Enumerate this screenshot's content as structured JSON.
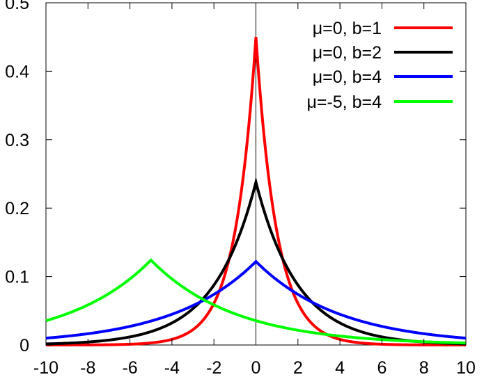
{
  "chart_data": {
    "type": "line",
    "title": "",
    "xlabel": "",
    "ylabel": "",
    "xlim": [
      -10,
      10
    ],
    "ylim": [
      0,
      0.5
    ],
    "xticks": [
      -10,
      -8,
      -6,
      -4,
      -2,
      0,
      2,
      4,
      6,
      8,
      10
    ],
    "xtick_labels": [
      "-10",
      "-8",
      "-6",
      "-4",
      "-2",
      "0",
      "2",
      "4",
      "6",
      "8",
      "10"
    ],
    "yticks": [
      0,
      0.1,
      0.2,
      0.3,
      0.4,
      0.5
    ],
    "ytick_labels": [
      "0",
      "0.1",
      "0.2",
      "0.3",
      "0.4",
      "0.5"
    ],
    "grid": false,
    "legend_position": "top-right",
    "series": [
      {
        "name": "μ=0, b=1",
        "mu": 0,
        "b": 1,
        "peak_value": 0.45,
        "color": "#ff0000"
      },
      {
        "name": "μ=0, b=2",
        "mu": 0,
        "b": 2,
        "peak_value": 0.238,
        "color": "#000000"
      },
      {
        "name": "μ=0, b=4",
        "mu": 0,
        "b": 4,
        "peak_value": 0.122,
        "color": "#0000ff"
      },
      {
        "name": "μ=-5, b=4",
        "mu": -5,
        "b": 4,
        "peak_value": 0.124,
        "color": "#00ff00"
      }
    ]
  }
}
